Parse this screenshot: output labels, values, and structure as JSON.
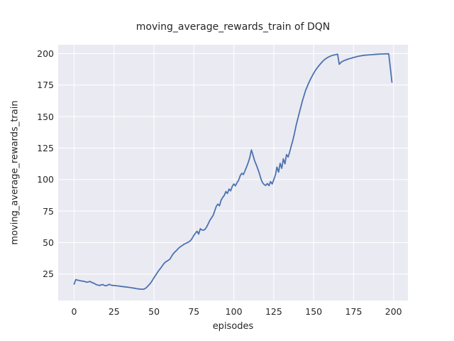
{
  "chart_data": {
    "type": "line",
    "title": "moving_average_rewards_train of DQN",
    "xlabel": "episodes",
    "ylabel": "moving_average_rewards_train",
    "xticks": [
      0,
      25,
      50,
      75,
      100,
      125,
      150,
      175,
      200
    ],
    "yticks": [
      25,
      50,
      75,
      100,
      125,
      150,
      175,
      200
    ],
    "xlim": [
      -10,
      209
    ],
    "ylim": [
      4,
      207
    ],
    "grid": true,
    "legend": "none",
    "colors": {
      "line": "#4c72b0",
      "axes_background": "#eaeaf2",
      "grid": "#ffffff",
      "figure_background": "#ffffff",
      "text": "#262626"
    },
    "series": [
      {
        "name": "moving_average_rewards_train",
        "points": [
          [
            0,
            17.0
          ],
          [
            1,
            20.6
          ],
          [
            2,
            20.2
          ],
          [
            4,
            19.6
          ],
          [
            6,
            19.3
          ],
          [
            8,
            18.5
          ],
          [
            9,
            18.9
          ],
          [
            10,
            19.1
          ],
          [
            11,
            18.3
          ],
          [
            12,
            18.0
          ],
          [
            13,
            17.2
          ],
          [
            14,
            16.6
          ],
          [
            16,
            15.9
          ],
          [
            17,
            16.4
          ],
          [
            18,
            16.7
          ],
          [
            19,
            15.9
          ],
          [
            20,
            15.7
          ],
          [
            21,
            16.2
          ],
          [
            22,
            16.9
          ],
          [
            23,
            16.2
          ],
          [
            24,
            16.0
          ],
          [
            26,
            15.8
          ],
          [
            28,
            15.5
          ],
          [
            30,
            15.1
          ],
          [
            32,
            14.8
          ],
          [
            34,
            14.5
          ],
          [
            36,
            14.1
          ],
          [
            38,
            13.7
          ],
          [
            40,
            13.2
          ],
          [
            42,
            13.0
          ],
          [
            43,
            12.9
          ],
          [
            44,
            13.2
          ],
          [
            45,
            13.9
          ],
          [
            46,
            15.3
          ],
          [
            47,
            16.6
          ],
          [
            48,
            18.1
          ],
          [
            49,
            20.0
          ],
          [
            50,
            22.1
          ],
          [
            51,
            24.0
          ],
          [
            52,
            26.0
          ],
          [
            53,
            27.8
          ],
          [
            54,
            29.4
          ],
          [
            55,
            31.1
          ],
          [
            56,
            33.0
          ],
          [
            57,
            34.3
          ],
          [
            58,
            35.2
          ],
          [
            59,
            35.9
          ],
          [
            60,
            36.9
          ],
          [
            61,
            39.0
          ],
          [
            62,
            41.0
          ],
          [
            63,
            42.4
          ],
          [
            64,
            43.6
          ],
          [
            65,
            45.0
          ],
          [
            66,
            46.2
          ],
          [
            67,
            47.1
          ],
          [
            68,
            47.9
          ],
          [
            69,
            48.8
          ],
          [
            70,
            49.4
          ],
          [
            71,
            50.0
          ],
          [
            72,
            50.7
          ],
          [
            73,
            51.7
          ],
          [
            74,
            53.5
          ],
          [
            75,
            55.7
          ],
          [
            76,
            57.5
          ],
          [
            77,
            59.0
          ],
          [
            78,
            56.7
          ],
          [
            79,
            61.0
          ],
          [
            80,
            60.0
          ],
          [
            81,
            59.8
          ],
          [
            82,
            60.5
          ],
          [
            83,
            62.5
          ],
          [
            84,
            65.0
          ],
          [
            85,
            67.7
          ],
          [
            86,
            69.5
          ],
          [
            87,
            71.5
          ],
          [
            88,
            75.0
          ],
          [
            89,
            78.7
          ],
          [
            90,
            80.5
          ],
          [
            91,
            79.2
          ],
          [
            92,
            83.5
          ],
          [
            93,
            85.8
          ],
          [
            94,
            87.4
          ],
          [
            95,
            90.5
          ],
          [
            96,
            89.0
          ],
          [
            97,
            92.5
          ],
          [
            98,
            91.0
          ],
          [
            99,
            94.5
          ],
          [
            100,
            96.5
          ],
          [
            101,
            95.0
          ],
          [
            102,
            97.5
          ],
          [
            103,
            99.5
          ],
          [
            104,
            103.0
          ],
          [
            105,
            105.0
          ],
          [
            106,
            104.0
          ],
          [
            107,
            107.0
          ],
          [
            108,
            110.0
          ],
          [
            109,
            113.5
          ],
          [
            110,
            117.5
          ],
          [
            111,
            123.5
          ],
          [
            112,
            119.5
          ],
          [
            113,
            115.0
          ],
          [
            114,
            112.0
          ],
          [
            115,
            108.5
          ],
          [
            116,
            105.0
          ],
          [
            117,
            100.5
          ],
          [
            118,
            97.5
          ],
          [
            119,
            96.0
          ],
          [
            120,
            95.3
          ],
          [
            121,
            96.9
          ],
          [
            122,
            95.2
          ],
          [
            123,
            98.4
          ],
          [
            124,
            96.5
          ],
          [
            125,
            99.9
          ],
          [
            126,
            103.5
          ],
          [
            127,
            109.9
          ],
          [
            128,
            105.9
          ],
          [
            129,
            112.9
          ],
          [
            130,
            108.9
          ],
          [
            131,
            116.5
          ],
          [
            132,
            112.5
          ],
          [
            133,
            119.9
          ],
          [
            134,
            117.9
          ],
          [
            135,
            122.0
          ],
          [
            136,
            126.9
          ],
          [
            137,
            131.3
          ],
          [
            138,
            136.9
          ],
          [
            139,
            142.9
          ],
          [
            140,
            148.0
          ],
          [
            141,
            153.0
          ],
          [
            142,
            157.9
          ],
          [
            143,
            162.6
          ],
          [
            144,
            166.9
          ],
          [
            145,
            170.9
          ],
          [
            146,
            174.0
          ],
          [
            147,
            176.9
          ],
          [
            148,
            179.7
          ],
          [
            149,
            182.0
          ],
          [
            150,
            184.4
          ],
          [
            151,
            186.5
          ],
          [
            152,
            188.3
          ],
          [
            153,
            189.9
          ],
          [
            154,
            191.5
          ],
          [
            155,
            192.9
          ],
          [
            156,
            194.3
          ],
          [
            157,
            195.4
          ],
          [
            158,
            196.3
          ],
          [
            159,
            197.0
          ],
          [
            160,
            197.7
          ],
          [
            161,
            198.2
          ],
          [
            162,
            198.7
          ],
          [
            163,
            199.0
          ],
          [
            164,
            199.2
          ],
          [
            165,
            199.5
          ],
          [
            166,
            191.5
          ],
          [
            167,
            192.9
          ],
          [
            168,
            193.8
          ],
          [
            169,
            194.4
          ],
          [
            170,
            194.9
          ],
          [
            171,
            195.4
          ],
          [
            172,
            195.8
          ],
          [
            173,
            196.2
          ],
          [
            174,
            196.5
          ],
          [
            175,
            196.9
          ],
          [
            176,
            197.2
          ],
          [
            177,
            197.6
          ],
          [
            178,
            197.9
          ],
          [
            179,
            198.1
          ],
          [
            180,
            198.3
          ],
          [
            182,
            198.7
          ],
          [
            184,
            198.9
          ],
          [
            186,
            199.1
          ],
          [
            188,
            199.3
          ],
          [
            190,
            199.5
          ],
          [
            192,
            199.6
          ],
          [
            194,
            199.7
          ],
          [
            196,
            199.8
          ],
          [
            197,
            199.8
          ],
          [
            198,
            189.0
          ],
          [
            199,
            177.3
          ]
        ]
      }
    ]
  }
}
